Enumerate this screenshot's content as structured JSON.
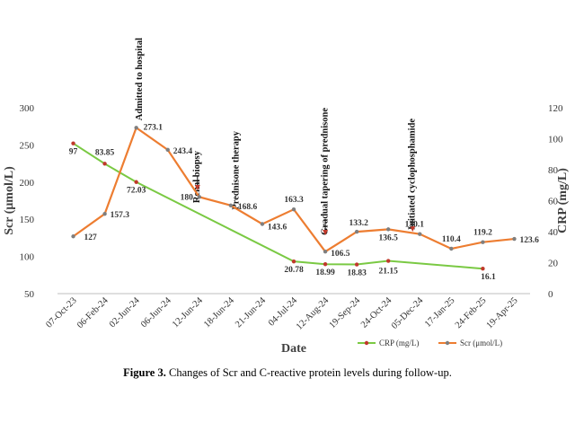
{
  "chart_data": {
    "type": "line",
    "xlabel": "Date",
    "ylabel_left": "Scr (μmol/L)",
    "ylabel_right": "CRP (mg/L)",
    "ylim_left": [
      50,
      300
    ],
    "ylim_right": [
      0,
      120
    ],
    "yticks_left": [
      50,
      100,
      150,
      200,
      250,
      300
    ],
    "yticks_right": [
      0,
      20,
      40,
      60,
      80,
      100,
      120
    ],
    "categories": [
      "07-Oct-23",
      "06-Feb-24",
      "02-Jun-24",
      "06-Jun-24",
      "12-Jun-24",
      "18-Jun-24",
      "21-Jun-24",
      "04-Jul-24",
      "12-Aug-24",
      "19-Sep-24",
      "24-Oct-24",
      "05-Dec-24",
      "17-Jan-25",
      "24-Feb-25",
      "19-Apr-25"
    ],
    "series": [
      {
        "name": "Scr (μmol/L)",
        "axis": "left",
        "color": "#ED7D31",
        "marker_color": "#7F7F7F",
        "values": [
          127,
          157.3,
          273.1,
          243.4,
          180,
          168.6,
          143.6,
          163.3,
          106.5,
          133.2,
          136.5,
          130.1,
          110.4,
          119.2,
          123.6
        ],
        "labels": [
          "127",
          "157.3",
          "273.1",
          "243.4",
          "180",
          "168.6",
          "143.6",
          "163.3",
          "106.5",
          "133.2",
          "136.5",
          "130.1",
          "110.4",
          "119.2",
          "123.6"
        ]
      },
      {
        "name": "CRP (mg/L)",
        "axis": "right",
        "color": "#7AC943",
        "marker_color": "#C0392B",
        "values": [
          97,
          83.85,
          72.03,
          null,
          null,
          null,
          null,
          20.78,
          18.99,
          18.83,
          21.15,
          null,
          null,
          16.1,
          null
        ],
        "labels": [
          "97",
          "83.85",
          "72.03",
          null,
          null,
          null,
          null,
          "20.78",
          "18.99",
          "18.83",
          "21.15",
          null,
          null,
          "16.1",
          null
        ]
      }
    ],
    "annotations": [
      {
        "text": "Admitted to hospital",
        "category": "02-Jun-24"
      },
      {
        "text": "Renal biopsy",
        "category": "12-Jun-24"
      },
      {
        "text": "Prednisone therapy",
        "category": "18-Jun-24"
      },
      {
        "text": "Gradual tapering of prednisone",
        "category": "12-Aug-24"
      },
      {
        "text": "Initiated cyclophosphamide",
        "category": "05-Dec-24"
      }
    ],
    "legend": {
      "placement": "bottom-right",
      "items": [
        "CRP (mg/L)",
        "Scr (μmol/L)"
      ]
    },
    "grid": false
  },
  "caption": {
    "label": "Figure 3.",
    "text": " Changes of Scr and C-reactive protein levels during follow-up."
  }
}
